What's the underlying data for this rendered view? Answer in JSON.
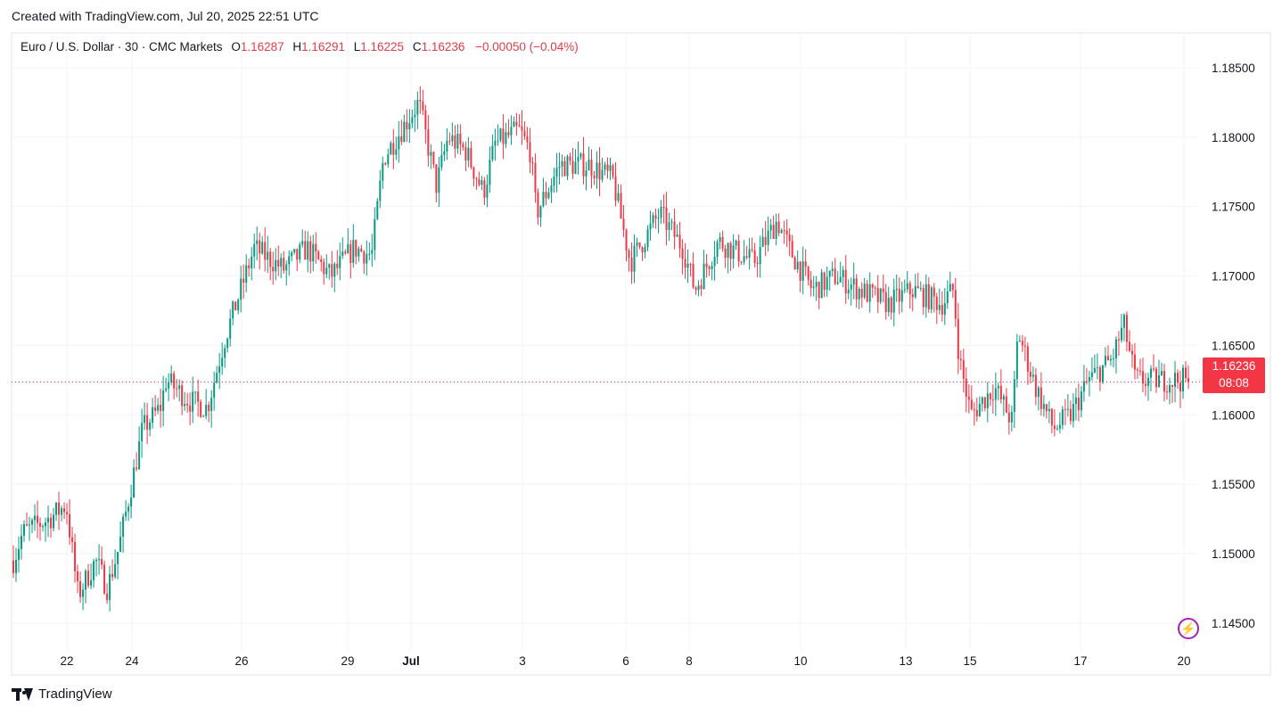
{
  "header": {
    "text": "Created with TradingView.com, Jul 20, 2025 22:51 UTC"
  },
  "legend": {
    "symbol": "Euro / U.S. Dollar · 30 · CMC Markets",
    "o_label": "O",
    "o_value": "1.16287",
    "h_label": "H",
    "h_value": "1.16291",
    "l_label": "L",
    "l_value": "1.16225",
    "c_label": "C",
    "c_value": "1.16236",
    "change": "−0.00050 (−0.04%)"
  },
  "price_tag": {
    "price": "1.16236",
    "countdown": "08:08"
  },
  "footer": {
    "brand": "TradingView"
  },
  "icons": {
    "bolt": "lightning-bolt-icon",
    "logo": "tradingview-logo-icon"
  },
  "colors": {
    "up": "#089981",
    "down": "#f23645",
    "last_price": "#f23645",
    "grid": "#f0f3fa",
    "accent": "#9c27b0"
  },
  "chart_data": {
    "type": "candlestick",
    "interval": "30",
    "y_ticks": [
      "1.18500",
      "1.18000",
      "1.17500",
      "1.17000",
      "1.16500",
      "1.16000",
      "1.15500",
      "1.15000",
      "1.14500"
    ],
    "ylim": [
      1.143,
      1.1875
    ],
    "x_ticks": [
      "22",
      "24",
      "26",
      "29",
      "Jul",
      "3",
      "6",
      "8",
      "10",
      "13",
      "15",
      "17",
      "20"
    ],
    "last_price": 1.16236,
    "path_nodes": [
      [
        0,
        1.1495
      ],
      [
        0.008,
        1.1515
      ],
      [
        0.03,
        1.1525
      ],
      [
        0.045,
        1.1535
      ],
      [
        0.055,
        1.147
      ],
      [
        0.07,
        1.1495
      ],
      [
        0.08,
        1.1475
      ],
      [
        0.09,
        1.1505
      ],
      [
        0.11,
        1.159
      ],
      [
        0.125,
        1.1605
      ],
      [
        0.13,
        1.1625
      ],
      [
        0.15,
        1.161
      ],
      [
        0.165,
        1.1605
      ],
      [
        0.18,
        1.1655
      ],
      [
        0.205,
        1.172
      ],
      [
        0.23,
        1.1705
      ],
      [
        0.25,
        1.172
      ],
      [
        0.27,
        1.17
      ],
      [
        0.29,
        1.172
      ],
      [
        0.305,
        1.1715
      ],
      [
        0.315,
        1.1785
      ],
      [
        0.345,
        1.1825
      ],
      [
        0.36,
        1.1765
      ],
      [
        0.37,
        1.18
      ],
      [
        0.385,
        1.179
      ],
      [
        0.4,
        1.176
      ],
      [
        0.41,
        1.1795
      ],
      [
        0.43,
        1.1805
      ],
      [
        0.44,
        1.179
      ],
      [
        0.445,
        1.1745
      ],
      [
        0.465,
        1.178
      ],
      [
        0.49,
        1.178
      ],
      [
        0.51,
        1.177
      ],
      [
        0.525,
        1.171
      ],
      [
        0.55,
        1.1745
      ],
      [
        0.57,
        1.172
      ],
      [
        0.58,
        1.169
      ],
      [
        0.6,
        1.1725
      ],
      [
        0.63,
        1.171
      ],
      [
        0.65,
        1.174
      ],
      [
        0.66,
        1.172
      ],
      [
        0.68,
        1.169
      ],
      [
        0.7,
        1.17
      ],
      [
        0.72,
        1.169
      ],
      [
        0.745,
        1.168
      ],
      [
        0.765,
        1.169
      ],
      [
        0.79,
        1.168
      ],
      [
        0.8,
        1.169
      ],
      [
        0.805,
        1.164
      ],
      [
        0.815,
        1.16
      ],
      [
        0.835,
        1.162
      ],
      [
        0.85,
        1.1595
      ],
      [
        0.855,
        1.166
      ],
      [
        0.87,
        1.162
      ],
      [
        0.885,
        1.159
      ],
      [
        0.9,
        1.16
      ],
      [
        0.915,
        1.1625
      ],
      [
        0.935,
        1.164
      ],
      [
        0.945,
        1.1665
      ],
      [
        0.955,
        1.1625
      ]
    ]
  }
}
